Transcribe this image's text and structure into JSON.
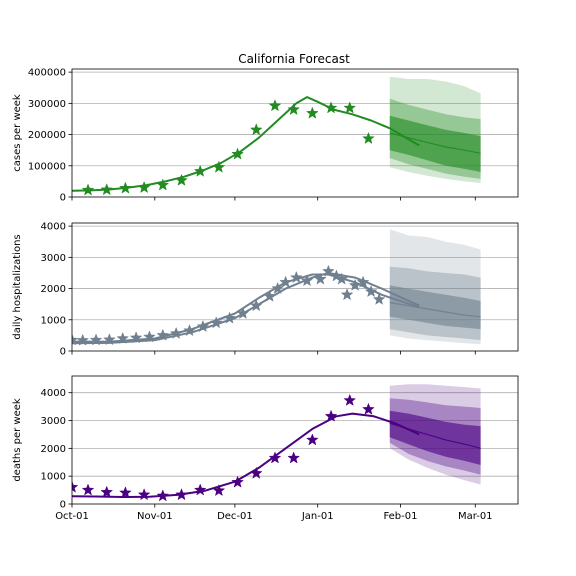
{
  "chart_data": [
    {
      "type": "line",
      "title": "California Forecast",
      "ylabel": "cases per week",
      "xlabel": "",
      "x_ticks": [
        "Oct-01",
        "Nov-01",
        "Dec-01",
        "Jan-01",
        "Feb-01",
        "Mar-01"
      ],
      "x_tick_dates": [
        "2020-10-01",
        "2020-11-01",
        "2020-12-01",
        "2021-01-01",
        "2021-02-01",
        "2021-03-01"
      ],
      "xlim": [
        "2020-10-01",
        "2021-03-17"
      ],
      "ylim": [
        0,
        410000
      ],
      "y_ticks": [
        0,
        100000,
        200000,
        300000,
        400000
      ],
      "y_tick_labels": [
        "0",
        "100000",
        "200000",
        "300000",
        "400000"
      ],
      "grid": "y",
      "color": "#228b22",
      "markers": "star",
      "model": {
        "x": [
          "2020-10-01",
          "2020-10-08",
          "2020-10-15",
          "2020-10-22",
          "2020-10-29",
          "2020-11-05",
          "2020-11-12",
          "2020-11-19",
          "2020-11-26",
          "2020-12-03",
          "2020-12-10",
          "2020-12-17",
          "2020-12-24",
          "2020-12-28",
          "2021-01-01",
          "2021-01-07",
          "2021-01-14",
          "2021-01-21",
          "2021-01-28",
          "2021-02-04",
          "2021-02-08"
        ],
        "y": [
          20000,
          21000,
          24000,
          30000,
          38000,
          50000,
          65000,
          85000,
          110000,
          145000,
          190000,
          245000,
          300000,
          320000,
          305000,
          280000,
          265000,
          245000,
          220000,
          185000,
          165000
        ]
      },
      "observed": {
        "x": [
          "2020-10-07",
          "2020-10-14",
          "2020-10-21",
          "2020-10-28",
          "2020-11-04",
          "2020-11-11",
          "2020-11-18",
          "2020-11-25",
          "2020-12-02",
          "2020-12-09",
          "2020-12-16",
          "2020-12-23",
          "2020-12-30",
          "2021-01-06",
          "2021-01-13",
          "2021-01-20"
        ],
        "y": [
          22000,
          23000,
          28000,
          30000,
          38000,
          53000,
          82000,
          95000,
          137000,
          215000,
          292000,
          280000,
          268000,
          285000,
          285000,
          187000
        ]
      },
      "forecast": {
        "x": [
          "2021-01-28",
          "2021-02-04",
          "2021-02-11",
          "2021-02-18",
          "2021-02-25",
          "2021-03-03"
        ],
        "median": [
          205000,
          190000,
          175000,
          160000,
          150000,
          140000
        ],
        "band50": {
          "lo": [
            150000,
            135000,
            118000,
            100000,
            90000,
            80000
          ],
          "hi": [
            260000,
            245000,
            230000,
            215000,
            205000,
            195000
          ]
        },
        "band80": {
          "lo": [
            125000,
            105000,
            90000,
            75000,
            65000,
            58000
          ],
          "hi": [
            315000,
            295000,
            280000,
            265000,
            255000,
            250000
          ]
        },
        "band95": {
          "lo": [
            95000,
            80000,
            68000,
            58000,
            50000,
            45000
          ],
          "hi": [
            385000,
            378000,
            378000,
            370000,
            355000,
            332000
          ]
        }
      }
    },
    {
      "type": "line",
      "title": "",
      "ylabel": "daily hospitalizations",
      "xlabel": "",
      "x_ticks": [
        "Oct-01",
        "Nov-01",
        "Dec-01",
        "Jan-01",
        "Feb-01",
        "Mar-01"
      ],
      "x_tick_dates": [
        "2020-10-01",
        "2020-11-01",
        "2020-12-01",
        "2021-01-01",
        "2021-02-01",
        "2021-03-01"
      ],
      "xlim": [
        "2020-10-01",
        "2021-03-17"
      ],
      "ylim": [
        0,
        4100
      ],
      "y_ticks": [
        0,
        1000,
        2000,
        3000,
        4000
      ],
      "y_tick_labels": [
        "0",
        "1000",
        "2000",
        "3000",
        "4000"
      ],
      "grid": "y",
      "color": "#708090",
      "markers": "star",
      "model": {
        "x": [
          "2020-10-01",
          "2020-10-15",
          "2020-11-01",
          "2020-11-15",
          "2020-12-01",
          "2020-12-10",
          "2020-12-20",
          "2020-12-30",
          "2021-01-05",
          "2021-01-15",
          "2021-01-25",
          "2021-02-08"
        ],
        "y": [
          300,
          300,
          400,
          700,
          1200,
          1700,
          2200,
          2450,
          2450,
          2200,
          1800,
          1400
        ]
      },
      "model2": {
        "x": [
          "2020-10-01",
          "2020-10-15",
          "2020-11-01",
          "2020-11-15",
          "2020-12-01",
          "2020-12-10",
          "2020-12-20",
          "2020-12-30",
          "2021-01-05",
          "2021-01-15",
          "2021-01-25",
          "2021-02-08"
        ],
        "y": [
          250,
          260,
          350,
          600,
          1050,
          1500,
          2000,
          2350,
          2500,
          2350,
          2000,
          1450
        ]
      },
      "observed": {
        "x": [
          "2020-10-01",
          "2020-10-05",
          "2020-10-10",
          "2020-10-15",
          "2020-10-20",
          "2020-10-25",
          "2020-10-30",
          "2020-11-04",
          "2020-11-09",
          "2020-11-14",
          "2020-11-19",
          "2020-11-24",
          "2020-11-29",
          "2020-12-04",
          "2020-12-09",
          "2020-12-14",
          "2020-12-17",
          "2020-12-20",
          "2020-12-24",
          "2020-12-28",
          "2021-01-02",
          "2021-01-05",
          "2021-01-08",
          "2021-01-10",
          "2021-01-12",
          "2021-01-15",
          "2021-01-18",
          "2021-01-21",
          "2021-01-24"
        ],
        "y": [
          350,
          340,
          350,
          360,
          400,
          420,
          450,
          500,
          560,
          650,
          780,
          900,
          1050,
          1200,
          1450,
          1750,
          2000,
          2200,
          2350,
          2250,
          2300,
          2550,
          2400,
          2300,
          1800,
          2100,
          2200,
          1900,
          1650
        ]
      },
      "forecast": {
        "x": [
          "2021-01-28",
          "2021-02-04",
          "2021-02-11",
          "2021-02-18",
          "2021-02-25",
          "2021-03-03"
        ],
        "median": [
          1550,
          1450,
          1350,
          1250,
          1150,
          1100
        ],
        "band50": {
          "lo": [
            1100,
            1000,
            900,
            800,
            750,
            700
          ],
          "hi": [
            2100,
            2000,
            1900,
            1800,
            1700,
            1600
          ]
        },
        "band80": {
          "lo": [
            700,
            600,
            500,
            450,
            400,
            350
          ],
          "hi": [
            2700,
            2650,
            2550,
            2500,
            2450,
            2350
          ]
        },
        "band95": {
          "lo": [
            500,
            400,
            350,
            300,
            250,
            220
          ],
          "hi": [
            3900,
            3700,
            3650,
            3500,
            3400,
            3250
          ]
        }
      }
    },
    {
      "type": "line",
      "title": "",
      "ylabel": "deaths per week",
      "xlabel": "",
      "x_ticks": [
        "Oct-01",
        "Nov-01",
        "Dec-01",
        "Jan-01",
        "Feb-01",
        "Mar-01"
      ],
      "x_tick_dates": [
        "2020-10-01",
        "2020-11-01",
        "2020-12-01",
        "2021-01-01",
        "2021-02-01",
        "2021-03-01"
      ],
      "xlim": [
        "2020-10-01",
        "2021-03-17"
      ],
      "ylim": [
        0,
        4600
      ],
      "y_ticks": [
        0,
        1000,
        2000,
        3000,
        4000
      ],
      "y_tick_labels": [
        "0",
        "1000",
        "2000",
        "3000",
        "4000"
      ],
      "grid": "y",
      "color": "#4b0082",
      "markers": "star",
      "model": {
        "x": [
          "2020-10-01",
          "2020-10-10",
          "2020-10-20",
          "2020-10-30",
          "2020-11-10",
          "2020-11-20",
          "2020-12-01",
          "2020-12-10",
          "2020-12-20",
          "2020-12-30",
          "2021-01-08",
          "2021-01-14",
          "2021-01-22",
          "2021-01-30",
          "2021-02-08"
        ],
        "y": [
          280,
          270,
          250,
          260,
          330,
          480,
          800,
          1300,
          2000,
          2700,
          3150,
          3250,
          3150,
          2900,
          2500
        ]
      },
      "observed": {
        "x": [
          "2020-10-01",
          "2020-10-07",
          "2020-10-14",
          "2020-10-21",
          "2020-10-28",
          "2020-11-04",
          "2020-11-11",
          "2020-11-18",
          "2020-11-25",
          "2020-12-02",
          "2020-12-09",
          "2020-12-16",
          "2020-12-23",
          "2020-12-30",
          "2021-01-06",
          "2021-01-13",
          "2021-01-20"
        ],
        "y": [
          600,
          500,
          420,
          400,
          330,
          290,
          330,
          500,
          480,
          780,
          1100,
          1650,
          1650,
          2300,
          3150,
          3720,
          3400
        ]
      },
      "forecast": {
        "x": [
          "2021-01-28",
          "2021-02-04",
          "2021-02-11",
          "2021-02-18",
          "2021-02-25",
          "2021-03-03"
        ],
        "median": [
          2900,
          2700,
          2500,
          2300,
          2150,
          2000
        ],
        "band50": {
          "lo": [
            2400,
            2150,
            1900,
            1700,
            1550,
            1400
          ],
          "hi": [
            3350,
            3250,
            3100,
            2950,
            2850,
            2800
          ]
        },
        "band80": {
          "lo": [
            2200,
            1800,
            1550,
            1350,
            1200,
            1050
          ],
          "hi": [
            3800,
            3750,
            3650,
            3550,
            3500,
            3450
          ]
        },
        "band95": {
          "lo": [
            2000,
            1600,
            1300,
            1050,
            850,
            700
          ],
          "hi": [
            4250,
            4300,
            4300,
            4250,
            4200,
            4150
          ]
        }
      }
    }
  ]
}
